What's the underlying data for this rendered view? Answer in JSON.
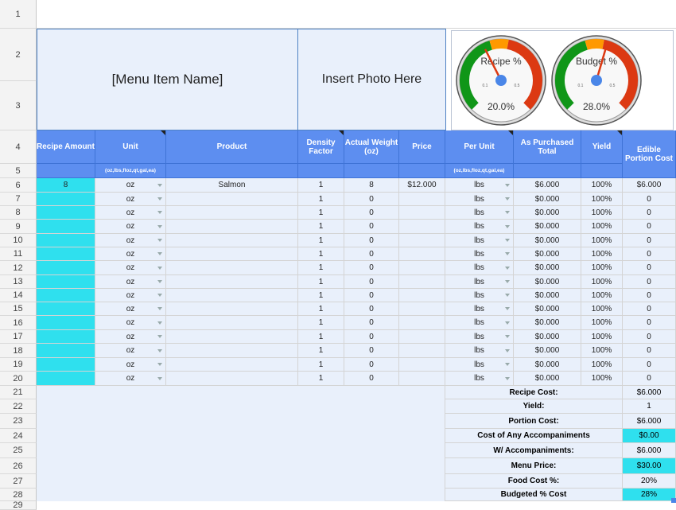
{
  "row_numbers": [
    "1",
    "2",
    "3",
    "4",
    "5",
    "6",
    "7",
    "8",
    "9",
    "10",
    "11",
    "12",
    "13",
    "14",
    "15",
    "16",
    "17",
    "18",
    "19",
    "20",
    "21",
    "22",
    "23",
    "24",
    "25",
    "26",
    "27",
    "28",
    "29"
  ],
  "title": {
    "menu_item_name": "[Menu Item Name]",
    "photo_placeholder": "Insert Photo Here"
  },
  "gauges": [
    {
      "label": "Recipe %",
      "value_text": "20.0%",
      "value": 0.2,
      "scale_min": "0.1",
      "scale_max": "0.5"
    },
    {
      "label": "Budget %",
      "value_text": "28.0%",
      "value": 0.28,
      "scale_min": "0.1",
      "scale_max": "0.5"
    }
  ],
  "headers": {
    "recipe_amount": "Recipe Amount",
    "unit": "Unit",
    "product": "Product",
    "density_factor": "Density Factor",
    "actual_weight": "Actual Weight (oz)",
    "price": "Price",
    "per_unit": "Per Unit",
    "as_purchased_total": "As Purchased Total",
    "yield": "Yield",
    "edible_portion_cost": "Edible Portion Cost",
    "unit_sub": "(oz,lbs,floz,qt,gal,ea)",
    "per_unit_sub": "(oz,lbs,floz,qt,gal,ea)"
  },
  "rows": [
    {
      "amount": "8",
      "unit": "oz",
      "product": "Salmon",
      "density": "1",
      "weight": "8",
      "price": "$12.000",
      "per_unit": "lbs",
      "ap_total": "$6.000",
      "yield": "100%",
      "ep_cost": "$6.000"
    },
    {
      "amount": "",
      "unit": "oz",
      "product": "",
      "density": "1",
      "weight": "0",
      "price": "",
      "per_unit": "lbs",
      "ap_total": "$0.000",
      "yield": "100%",
      "ep_cost": "0"
    },
    {
      "amount": "",
      "unit": "oz",
      "product": "",
      "density": "1",
      "weight": "0",
      "price": "",
      "per_unit": "lbs",
      "ap_total": "$0.000",
      "yield": "100%",
      "ep_cost": "0"
    },
    {
      "amount": "",
      "unit": "oz",
      "product": "",
      "density": "1",
      "weight": "0",
      "price": "",
      "per_unit": "lbs",
      "ap_total": "$0.000",
      "yield": "100%",
      "ep_cost": "0"
    },
    {
      "amount": "",
      "unit": "oz",
      "product": "",
      "density": "1",
      "weight": "0",
      "price": "",
      "per_unit": "lbs",
      "ap_total": "$0.000",
      "yield": "100%",
      "ep_cost": "0"
    },
    {
      "amount": "",
      "unit": "oz",
      "product": "",
      "density": "1",
      "weight": "0",
      "price": "",
      "per_unit": "lbs",
      "ap_total": "$0.000",
      "yield": "100%",
      "ep_cost": "0"
    },
    {
      "amount": "",
      "unit": "oz",
      "product": "",
      "density": "1",
      "weight": "0",
      "price": "",
      "per_unit": "lbs",
      "ap_total": "$0.000",
      "yield": "100%",
      "ep_cost": "0"
    },
    {
      "amount": "",
      "unit": "oz",
      "product": "",
      "density": "1",
      "weight": "0",
      "price": "",
      "per_unit": "lbs",
      "ap_total": "$0.000",
      "yield": "100%",
      "ep_cost": "0"
    },
    {
      "amount": "",
      "unit": "oz",
      "product": "",
      "density": "1",
      "weight": "0",
      "price": "",
      "per_unit": "lbs",
      "ap_total": "$0.000",
      "yield": "100%",
      "ep_cost": "0"
    },
    {
      "amount": "",
      "unit": "oz",
      "product": "",
      "density": "1",
      "weight": "0",
      "price": "",
      "per_unit": "lbs",
      "ap_total": "$0.000",
      "yield": "100%",
      "ep_cost": "0"
    },
    {
      "amount": "",
      "unit": "oz",
      "product": "",
      "density": "1",
      "weight": "0",
      "price": "",
      "per_unit": "lbs",
      "ap_total": "$0.000",
      "yield": "100%",
      "ep_cost": "0"
    },
    {
      "amount": "",
      "unit": "oz",
      "product": "",
      "density": "1",
      "weight": "0",
      "price": "",
      "per_unit": "lbs",
      "ap_total": "$0.000",
      "yield": "100%",
      "ep_cost": "0"
    },
    {
      "amount": "",
      "unit": "oz",
      "product": "",
      "density": "1",
      "weight": "0",
      "price": "",
      "per_unit": "lbs",
      "ap_total": "$0.000",
      "yield": "100%",
      "ep_cost": "0"
    },
    {
      "amount": "",
      "unit": "oz",
      "product": "",
      "density": "1",
      "weight": "0",
      "price": "",
      "per_unit": "lbs",
      "ap_total": "$0.000",
      "yield": "100%",
      "ep_cost": "0"
    },
    {
      "amount": "",
      "unit": "oz",
      "product": "",
      "density": "1",
      "weight": "0",
      "price": "",
      "per_unit": "lbs",
      "ap_total": "$0.000",
      "yield": "100%",
      "ep_cost": "0"
    }
  ],
  "summary": [
    {
      "label": "Recipe Cost:",
      "value": "$6.000",
      "highlight": false
    },
    {
      "label": "Yield:",
      "value": "1",
      "highlight": false
    },
    {
      "label": "Portion Cost:",
      "value": "$6.000",
      "highlight": false
    },
    {
      "label": "Cost of Any Accompaniments",
      "value": "$0.00",
      "highlight": true
    },
    {
      "label": "W/ Accompaniments:",
      "value": "$6.000",
      "highlight": false
    },
    {
      "label": "Menu Price:",
      "value": "$30.00",
      "highlight": true
    },
    {
      "label": "Food Cost %:",
      "value": "20%",
      "highlight": false
    },
    {
      "label": "Budgeted % Cost",
      "value": "28%",
      "highlight": true
    }
  ],
  "colors": {
    "header_blue": "#5d8ef0",
    "cell_blue": "#e9f0fb",
    "input_cyan": "#2fe0ee",
    "gauge_green": "#109618",
    "gauge_yellow": "#ff9900",
    "gauge_red": "#dc3912"
  }
}
